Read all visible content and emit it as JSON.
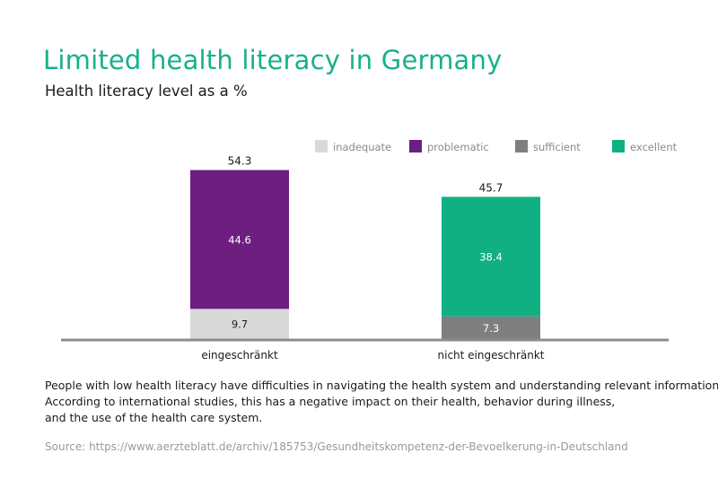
{
  "title": "Limited health literacy in Germany",
  "subtitle": "Health literacy level as a %",
  "caption": [
    "People with low health literacy have difficulties in navigating the health system and understanding relevant information.",
    "According to international studies, this has a negative impact on their health, behavior during illness,",
    "and the use of the health care system."
  ],
  "source": "Source: https://www.aerzteblatt.de/archiv/185753/Gesundheitskompetenz-der-Bevoelkerung-in-Deutschland",
  "colors": {
    "title": "#18b08a",
    "inadequate": "#d9d9d9",
    "problematic": "#6d1f80",
    "sufficient": "#7f7f7f",
    "excellent": "#10b083"
  },
  "chart_data": {
    "type": "bar",
    "stacked": true,
    "categories": [
      "eingeschränkt",
      "nicht eingeschränkt"
    ],
    "series": [
      {
        "name": "inadequate",
        "color": "#d9d9d9",
        "values": [
          9.7,
          0
        ]
      },
      {
        "name": "problematic",
        "color": "#6d1f80",
        "values": [
          44.6,
          0
        ]
      },
      {
        "name": "sufficient",
        "color": "#7f7f7f",
        "values": [
          0,
          7.3
        ]
      },
      {
        "name": "excellent",
        "color": "#10b083",
        "values": [
          0,
          38.4
        ]
      }
    ],
    "segment_labels": [
      [
        "9.7",
        "44.6",
        "",
        ""
      ],
      [
        "",
        "",
        "7.3",
        "38.4"
      ]
    ],
    "totals": [
      "54.3",
      "45.7"
    ],
    "legend_position": "top",
    "ylim": [
      0,
      60
    ],
    "grid": false
  }
}
